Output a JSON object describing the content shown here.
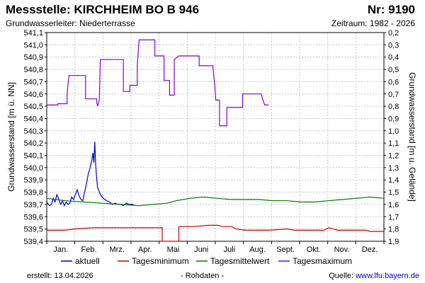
{
  "header": {
    "title": "Messstelle: KIRCHHEIM BO B 946",
    "nr": "Nr: 9190",
    "aquifer": "Grundwasserleiter:   Niederterrasse",
    "period": "Zeitraum: 1982 - 2026"
  },
  "footer": {
    "created": "erstellt:  13.04.2026",
    "raw": "- Rohdaten -",
    "source_label": "Quelle: ",
    "source_link": "www.lfu.bayern.de"
  },
  "colors": {
    "aktuell": "#0000cc",
    "minimum": "#cc0000",
    "mittel": "#007700",
    "maximum": "#8800cc",
    "grid": "#c8c8c8"
  },
  "chart_data": {
    "type": "line",
    "ylabel_left": "Grundwasserstand [m ü. NN]",
    "ylabel_right": "Grundwasserstand [m u. Gelände]",
    "ylim_left": [
      539.4,
      541.1
    ],
    "ylim_right_inverted": [
      1.9,
      0.2
    ],
    "yticks_left": [
      "539,4",
      "539,5",
      "539,6",
      "539,7",
      "539,8",
      "539,9",
      "540,0",
      "540,1",
      "540,2",
      "540,3",
      "540,4",
      "540,5",
      "540,6",
      "540,7",
      "540,8",
      "540,9",
      "541,0",
      "541,1"
    ],
    "yticks_right": [
      "0,2",
      "0,3",
      "0,4",
      "0,5",
      "0,6",
      "0,7",
      "0,8",
      "0,9",
      "1,0",
      "1,1",
      "1,2",
      "1,3",
      "1,4",
      "1,5",
      "1,6",
      "1,7",
      "1,8",
      "1,9"
    ],
    "x_months": [
      "Jan.",
      "Feb.",
      "Mrz.",
      "Apr.",
      "Mai",
      "Juni",
      "Juli",
      "Aug.",
      "Sept.",
      "Okt.",
      "Nov.",
      "Dez."
    ],
    "grid": true,
    "legend_position": "bottom",
    "series": [
      {
        "name": "aktuell",
        "points": [
          [
            0,
            539.72
          ],
          [
            3,
            539.69
          ],
          [
            5,
            539.7
          ],
          [
            7,
            539.75
          ],
          [
            9,
            539.72
          ],
          [
            11,
            539.78
          ],
          [
            13,
            539.74
          ],
          [
            15,
            539.7
          ],
          [
            17,
            539.73
          ],
          [
            19,
            539.69
          ],
          [
            21,
            539.72
          ],
          [
            23,
            539.7
          ],
          [
            25,
            539.71
          ],
          [
            27,
            539.76
          ],
          [
            29,
            539.74
          ],
          [
            31,
            539.78
          ],
          [
            33,
            539.82
          ],
          [
            35,
            539.77
          ],
          [
            37,
            539.74
          ],
          [
            39,
            539.73
          ],
          [
            41,
            539.8
          ],
          [
            43,
            539.87
          ],
          [
            45,
            539.95
          ],
          [
            47,
            540.0
          ],
          [
            49,
            540.07
          ],
          [
            50,
            540.12
          ],
          [
            51,
            540.04
          ],
          [
            52,
            540.21
          ],
          [
            53,
            540.02
          ],
          [
            54,
            539.92
          ],
          [
            55,
            539.84
          ],
          [
            57,
            539.8
          ],
          [
            59,
            539.77
          ],
          [
            61,
            539.75
          ],
          [
            63,
            539.74
          ],
          [
            65,
            539.73
          ],
          [
            68,
            539.72
          ],
          [
            71,
            539.7
          ],
          [
            74,
            539.71
          ],
          [
            77,
            539.7
          ],
          [
            80,
            539.7
          ],
          [
            83,
            539.69
          ],
          [
            86,
            539.71
          ],
          [
            89,
            539.7
          ],
          [
            92,
            539.7
          ],
          [
            94,
            539.7
          ]
        ]
      },
      {
        "name": "Tagesminimum",
        "points": [
          [
            0,
            539.49
          ],
          [
            20,
            539.49
          ],
          [
            30,
            539.5
          ],
          [
            50,
            539.51
          ],
          [
            80,
            539.51
          ],
          [
            120,
            539.51
          ],
          [
            125,
            539.51
          ],
          [
            125,
            539.4
          ],
          [
            125,
            539.4
          ],
          [
            143,
            539.4
          ],
          [
            143,
            539.52
          ],
          [
            160,
            539.52
          ],
          [
            175,
            539.53
          ],
          [
            185,
            539.53
          ],
          [
            190,
            539.52
          ],
          [
            200,
            539.52
          ],
          [
            205,
            539.5
          ],
          [
            215,
            539.49
          ],
          [
            240,
            539.49
          ],
          [
            260,
            539.5
          ],
          [
            268,
            539.49
          ],
          [
            300,
            539.49
          ],
          [
            305,
            539.51
          ],
          [
            310,
            539.5
          ],
          [
            315,
            539.49
          ],
          [
            345,
            539.49
          ],
          [
            350,
            539.48
          ],
          [
            365,
            539.48
          ]
        ]
      },
      {
        "name": "Tagesmittelwert",
        "points": [
          [
            0,
            539.75
          ],
          [
            20,
            539.73
          ],
          [
            40,
            539.72
          ],
          [
            60,
            539.71
          ],
          [
            80,
            539.7
          ],
          [
            100,
            539.69
          ],
          [
            115,
            539.7
          ],
          [
            130,
            539.71
          ],
          [
            140,
            539.73
          ],
          [
            155,
            539.75
          ],
          [
            170,
            539.76
          ],
          [
            185,
            539.75
          ],
          [
            200,
            539.74
          ],
          [
            215,
            539.74
          ],
          [
            230,
            539.74
          ],
          [
            245,
            539.73
          ],
          [
            260,
            539.73
          ],
          [
            275,
            539.72
          ],
          [
            290,
            539.72
          ],
          [
            305,
            539.73
          ],
          [
            320,
            539.74
          ],
          [
            335,
            539.75
          ],
          [
            350,
            539.76
          ],
          [
            365,
            539.75
          ]
        ]
      },
      {
        "name": "Tagesmaximum",
        "points": [
          [
            0,
            540.51
          ],
          [
            12,
            540.51
          ],
          [
            12,
            540.52
          ],
          [
            22,
            540.52
          ],
          [
            22,
            540.6
          ],
          [
            24,
            540.75
          ],
          [
            42,
            540.75
          ],
          [
            42,
            540.56
          ],
          [
            54,
            540.56
          ],
          [
            54,
            540.54
          ],
          [
            55,
            540.5
          ],
          [
            57,
            540.55
          ],
          [
            58,
            540.88
          ],
          [
            83,
            540.88
          ],
          [
            83,
            540.62
          ],
          [
            90,
            540.62
          ],
          [
            90,
            540.67
          ],
          [
            98,
            540.67
          ],
          [
            98,
            540.84
          ],
          [
            100,
            541.04
          ],
          [
            117,
            541.04
          ],
          [
            117,
            540.91
          ],
          [
            127,
            540.91
          ],
          [
            127,
            540.71
          ],
          [
            133,
            540.71
          ],
          [
            133,
            540.59
          ],
          [
            138,
            540.59
          ],
          [
            138,
            540.88
          ],
          [
            143,
            540.91
          ],
          [
            165,
            540.91
          ],
          [
            165,
            540.83
          ],
          [
            180,
            540.83
          ],
          [
            180,
            540.81
          ],
          [
            182,
            540.66
          ],
          [
            183,
            540.55
          ],
          [
            187,
            540.55
          ],
          [
            187,
            540.34
          ],
          [
            195,
            540.34
          ],
          [
            195,
            540.49
          ],
          [
            212,
            540.49
          ],
          [
            212,
            540.6
          ],
          [
            232,
            540.6
          ],
          [
            234,
            540.55
          ],
          [
            236,
            540.51
          ],
          [
            240,
            540.51
          ]
        ]
      }
    ],
    "legend": [
      "aktuell",
      "Tagesminimum",
      "Tagesmittelwert",
      "Tagesmaximum"
    ]
  }
}
